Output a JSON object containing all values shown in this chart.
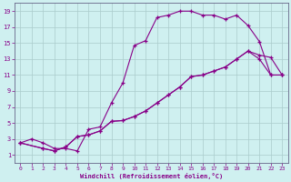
{
  "xlabel": "Windchill (Refroidissement éolien,°C)",
  "bg_color": "#cff0f0",
  "line_color": "#880088",
  "xlim": [
    -0.5,
    23.5
  ],
  "ylim": [
    0,
    20
  ],
  "xticks": [
    0,
    1,
    2,
    3,
    4,
    5,
    6,
    7,
    8,
    9,
    10,
    11,
    12,
    13,
    14,
    15,
    16,
    17,
    18,
    19,
    20,
    21,
    22,
    23
  ],
  "yticks": [
    1,
    3,
    5,
    7,
    9,
    11,
    13,
    15,
    17,
    19
  ],
  "line1_x": [
    0,
    1,
    2,
    3,
    4,
    5,
    6,
    7,
    8,
    9,
    10,
    11,
    12,
    13,
    14,
    15,
    16,
    17,
    18,
    19,
    20,
    21,
    22,
    23
  ],
  "line1_y": [
    2.5,
    3.0,
    2.5,
    1.8,
    1.8,
    1.5,
    4.2,
    4.5,
    7.5,
    10.0,
    14.7,
    15.3,
    18.2,
    18.5,
    19.0,
    19.0,
    18.5,
    18.5,
    18.0,
    18.5,
    17.2,
    15.2,
    11.0,
    11.0
  ],
  "line2_x": [
    0,
    2,
    3,
    4,
    5,
    6,
    7,
    8,
    9,
    10,
    11,
    12,
    13,
    14,
    15,
    16,
    17,
    18,
    19,
    20,
    21,
    22,
    23
  ],
  "line2_y": [
    2.5,
    1.8,
    1.5,
    2.0,
    3.3,
    3.5,
    4.0,
    5.2,
    5.3,
    5.8,
    6.5,
    7.5,
    8.5,
    9.5,
    10.8,
    11.0,
    11.5,
    12.0,
    13.0,
    14.0,
    13.5,
    13.2,
    11.0
  ],
  "line3_x": [
    0,
    2,
    3,
    4,
    5,
    6,
    7,
    8,
    9,
    10,
    11,
    12,
    13,
    14,
    15,
    16,
    17,
    18,
    19,
    20,
    21,
    22,
    23
  ],
  "line3_y": [
    2.5,
    1.8,
    1.5,
    2.0,
    3.3,
    3.5,
    4.0,
    5.2,
    5.3,
    5.8,
    6.5,
    7.5,
    8.5,
    9.5,
    10.8,
    11.0,
    11.5,
    12.0,
    13.0,
    14.0,
    13.0,
    11.0,
    11.0
  ]
}
